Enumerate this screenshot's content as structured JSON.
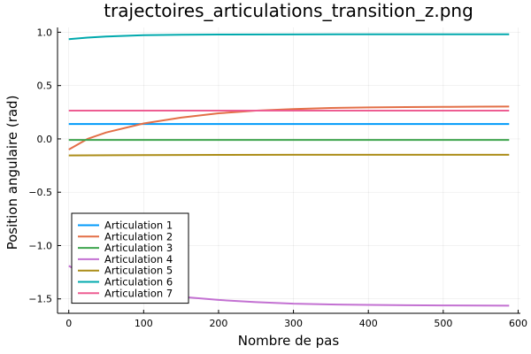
{
  "chart_data": {
    "type": "line",
    "title": "trajectoires_articulations_transition_z.png",
    "xlabel": "Nombre de pas",
    "ylabel": "Position angulaire (rad)",
    "xlim": [
      -15,
      603
    ],
    "ylim": [
      -1.635,
      1.045
    ],
    "xticks": [
      0,
      100,
      200,
      300,
      400,
      500,
      600
    ],
    "xtick_labels": [
      "0",
      "100",
      "200",
      "300",
      "400",
      "500",
      "600"
    ],
    "yticks": [
      -1.5,
      -1.0,
      -0.5,
      0.0,
      0.5,
      1.0
    ],
    "ytick_labels": [
      "−1.5",
      "−1.0",
      "−0.5",
      "0.0",
      "0.5",
      "1.0"
    ],
    "grid": true,
    "legend_position": "bottom-left",
    "series": [
      {
        "name": "Articulation 1",
        "color": "#009AFA",
        "x": [
          0,
          588
        ],
        "y": [
          0.14,
          0.14
        ]
      },
      {
        "name": "Articulation 2",
        "color": "#E36F47",
        "x": [
          0,
          25,
          50,
          100,
          150,
          200,
          250,
          300,
          350,
          400,
          450,
          500,
          550,
          588
        ],
        "y": [
          -0.1,
          0.0,
          0.06,
          0.145,
          0.2,
          0.24,
          0.265,
          0.28,
          0.29,
          0.295,
          0.298,
          0.3,
          0.302,
          0.303
        ]
      },
      {
        "name": "Articulation 3",
        "color": "#3EA44E",
        "x": [
          0,
          588
        ],
        "y": [
          -0.01,
          -0.01
        ]
      },
      {
        "name": "Articulation 4",
        "color": "#C371D2",
        "x": [
          0,
          25,
          50,
          100,
          150,
          200,
          250,
          300,
          350,
          400,
          450,
          500,
          550,
          588
        ],
        "y": [
          -1.19,
          -1.29,
          -1.35,
          -1.43,
          -1.48,
          -1.51,
          -1.53,
          -1.545,
          -1.552,
          -1.556,
          -1.559,
          -1.561,
          -1.562,
          -1.563
        ]
      },
      {
        "name": "Articulation 5",
        "color": "#AC8D18",
        "x": [
          0,
          100,
          200,
          300,
          400,
          500,
          588
        ],
        "y": [
          -0.155,
          -0.152,
          -0.15,
          -0.149,
          -0.149,
          -0.149,
          -0.149
        ]
      },
      {
        "name": "Articulation 6",
        "color": "#00A9AD",
        "x": [
          0,
          25,
          50,
          100,
          150,
          200,
          300,
          400,
          500,
          588
        ],
        "y": [
          0.935,
          0.95,
          0.96,
          0.972,
          0.977,
          0.979,
          0.98,
          0.981,
          0.981,
          0.981
        ]
      },
      {
        "name": "Articulation 7",
        "color": "#ED5D92",
        "x": [
          0,
          588
        ],
        "y": [
          0.265,
          0.265
        ]
      }
    ]
  }
}
